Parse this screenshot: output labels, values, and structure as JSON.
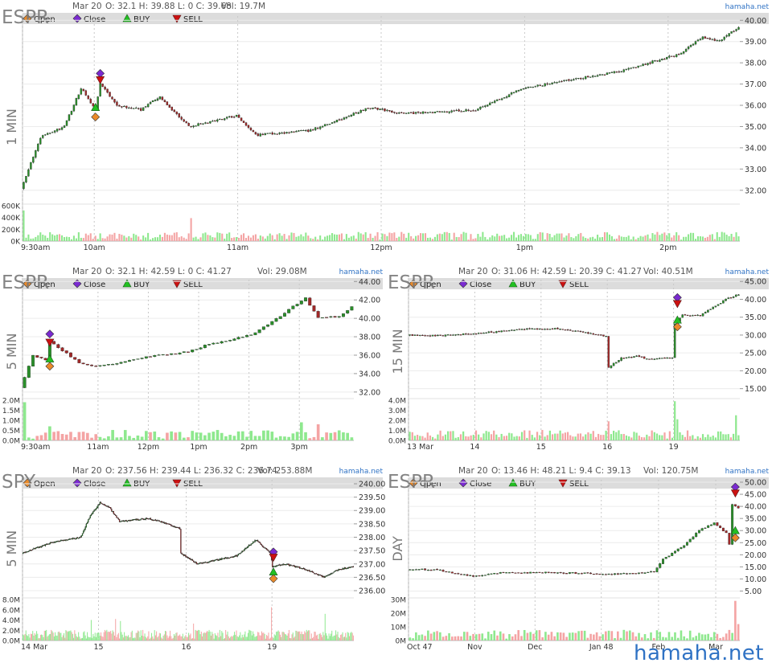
{
  "source_label": "hamaha.net",
  "watermark": "hamaha.net",
  "legend_items": [
    "Open",
    "Close",
    "BUY",
    "SELL"
  ],
  "colors": {
    "up": "#2a8f2a",
    "down": "#a02828",
    "vol_up": "#8ee88e",
    "vol_down": "#f4a4a4",
    "open_marker": "#e98a2a",
    "close_marker": "#7a2ad0",
    "buy_marker": "#22c022",
    "sell_marker": "#cc1111",
    "legend_bar": "#dcdcdc",
    "grid": "#c8c8c8"
  },
  "chart_data": [
    {
      "type": "candlestick",
      "symbol": "ESPR",
      "timeframe": "1 MIN",
      "header": {
        "date": "Mar 20",
        "ohlc": "O: 32.1 H: 39.88 L: 0 C: 39.68",
        "volume": "Vol: 19.7M"
      },
      "ylim": [
        31.5,
        40.2
      ],
      "yticks": [
        "32.00",
        "33.00",
        "34.00",
        "35.00",
        "36.00",
        "37.00",
        "38.00",
        "39.00",
        "40.00"
      ],
      "ytick_values": [
        32,
        33,
        34,
        35,
        36,
        37,
        38,
        39,
        40
      ],
      "xlabels": [
        "9:30am",
        "10am",
        "11am",
        "12pm",
        "1pm",
        "2pm"
      ],
      "xlabel_pos": [
        0,
        30,
        90,
        150,
        210,
        270
      ],
      "n_bars": 300,
      "price_path": [
        [
          0,
          32.1
        ],
        [
          8,
          34.5
        ],
        [
          18,
          35.0
        ],
        [
          25,
          36.8
        ],
        [
          31,
          35.8
        ],
        [
          33,
          37.0
        ],
        [
          40,
          36.0
        ],
        [
          50,
          35.8
        ],
        [
          58,
          36.4
        ],
        [
          70,
          35.0
        ],
        [
          90,
          35.5
        ],
        [
          98,
          34.6
        ],
        [
          120,
          34.8
        ],
        [
          135,
          35.4
        ],
        [
          145,
          35.9
        ],
        [
          160,
          35.6
        ],
        [
          190,
          35.8
        ],
        [
          210,
          36.8
        ],
        [
          230,
          37.2
        ],
        [
          250,
          37.6
        ],
        [
          275,
          38.4
        ],
        [
          285,
          39.2
        ],
        [
          292,
          39.0
        ],
        [
          300,
          39.68
        ]
      ],
      "vol_ylim": [
        0,
        600000
      ],
      "vol_ticks": [
        "600K",
        "400K",
        "200K",
        "0K"
      ],
      "vol_tick_values": [
        600000,
        400000,
        200000,
        0
      ],
      "vol_spikes": [
        [
          0,
          520000
        ],
        [
          70,
          390000
        ]
      ],
      "markers": [
        {
          "type": "open",
          "bar": 30,
          "price": 35.45
        },
        {
          "type": "buy",
          "bar": 30,
          "price": 35.9
        },
        {
          "type": "close",
          "bar": 32,
          "price": 37.5
        },
        {
          "type": "sell",
          "bar": 32,
          "price": 37.2
        }
      ]
    },
    {
      "type": "candlestick",
      "symbol": "ESPR",
      "timeframe": "5 MIN",
      "header": {
        "date": "Mar 20",
        "ohlc": "O: 32.1 H: 42.59 L: 0 C: 41.27",
        "volume": "Vol: 29.08M"
      },
      "ylim": [
        31.2,
        44.2
      ],
      "yticks": [
        "32.00",
        "34.00",
        "36.00",
        "38.00",
        "40.00",
        "42.00",
        "44.00"
      ],
      "ytick_values": [
        32,
        34,
        36,
        38,
        40,
        42,
        44
      ],
      "xlabels": [
        "9:30am",
        "11am",
        "12pm",
        "1pm",
        "2pm",
        "3pm"
      ],
      "xlabel_pos": [
        0,
        18,
        30,
        42,
        54,
        66
      ],
      "n_bars": 79,
      "price_path": [
        [
          0,
          32.5
        ],
        [
          3,
          36.0
        ],
        [
          6,
          35.5
        ],
        [
          7,
          37.5
        ],
        [
          10,
          36.5
        ],
        [
          14,
          35.2
        ],
        [
          18,
          34.8
        ],
        [
          22,
          35.0
        ],
        [
          30,
          35.8
        ],
        [
          40,
          36.4
        ],
        [
          45,
          37.2
        ],
        [
          55,
          38.2
        ],
        [
          60,
          39.6
        ],
        [
          66,
          41.6
        ],
        [
          68,
          42.2
        ],
        [
          71,
          40.0
        ],
        [
          76,
          40.2
        ],
        [
          79,
          41.3
        ]
      ],
      "vol_ylim": [
        0,
        2000000
      ],
      "vol_ticks": [
        "2.0M",
        "1.5M",
        "1.0M",
        "0.5M",
        "0.0M"
      ],
      "vol_tick_values": [
        2000000,
        1500000,
        1000000,
        500000,
        0
      ],
      "vol_spikes": [
        [
          0,
          1900000
        ],
        [
          6,
          700000
        ],
        [
          66,
          900000
        ],
        [
          70,
          800000
        ]
      ],
      "markers": [
        {
          "type": "open",
          "bar": 6,
          "price": 34.8
        },
        {
          "type": "buy",
          "bar": 6,
          "price": 35.6
        },
        {
          "type": "close",
          "bar": 6,
          "price": 38.3
        },
        {
          "type": "sell",
          "bar": 6,
          "price": 37.4
        }
      ]
    },
    {
      "type": "candlestick",
      "symbol": "ESPR",
      "timeframe": "15 MIN",
      "header": {
        "date": "Mar 20",
        "ohlc": "O: 31.06 H: 42.59 L: 20.39 C: 41.27",
        "volume": "Vol: 40.51M"
      },
      "ylim": [
        12.0,
        45.5
      ],
      "yticks": [
        "15.00",
        "20.00",
        "25.00",
        "30.00",
        "35.00",
        "40.00",
        "45.00"
      ],
      "ytick_values": [
        15,
        20,
        25,
        30,
        35,
        40,
        45
      ],
      "xlabels": [
        "13 Mar",
        "14",
        "15",
        "16",
        "19"
      ],
      "xlabel_pos": [
        0,
        26,
        52,
        78,
        104
      ],
      "n_bars": 130,
      "price_path": [
        [
          0,
          30.0
        ],
        [
          10,
          29.8
        ],
        [
          30,
          30.6
        ],
        [
          45,
          31.6
        ],
        [
          60,
          31.8
        ],
        [
          70,
          30.6
        ],
        [
          78,
          29.6
        ],
        [
          79,
          21.0
        ],
        [
          84,
          23.5
        ],
        [
          90,
          24.0
        ],
        [
          96,
          23.2
        ],
        [
          104,
          23.6
        ],
        [
          105,
          33.0
        ],
        [
          108,
          35.5
        ],
        [
          115,
          35.5
        ],
        [
          125,
          40.0
        ],
        [
          130,
          41.3
        ]
      ],
      "vol_ylim": [
        0,
        4000000
      ],
      "vol_ticks": [
        "4.0M",
        "3.0M",
        "2.0M",
        "1.0M",
        "0.0M"
      ],
      "vol_tick_values": [
        4000000,
        3000000,
        2000000,
        1000000,
        0
      ],
      "vol_spikes": [
        [
          78,
          1900000
        ],
        [
          104,
          3900000
        ],
        [
          105,
          2100000
        ],
        [
          128,
          2500000
        ]
      ],
      "markers": [
        {
          "type": "close",
          "bar": 105,
          "price": 40.5
        },
        {
          "type": "sell",
          "bar": 105,
          "price": 38.8
        },
        {
          "type": "buy",
          "bar": 105,
          "price": 34.2
        },
        {
          "type": "open",
          "bar": 105,
          "price": 32.3
        }
      ]
    },
    {
      "type": "candlestick",
      "symbol": "SPY",
      "timeframe": "5 MIN",
      "header": {
        "date": "Mar 20",
        "ohlc": "O: 237.56 H: 239.44 L: 236.32 C: 236.74",
        "volume": "Vol: 253.88M"
      },
      "ylim": [
        235.85,
        240.15
      ],
      "yticks": [
        "236.00",
        "236.50",
        "237.00",
        "237.50",
        "238.00",
        "238.50",
        "239.00",
        "239.50",
        "240.00"
      ],
      "ytick_values": [
        236,
        236.5,
        237,
        237.5,
        238,
        238.5,
        239,
        239.5,
        240
      ],
      "xlabels": [
        "14 Mar",
        "15",
        "16",
        "19"
      ],
      "xlabel_pos": [
        0,
        78,
        168,
        256
      ],
      "n_bars": 340,
      "price_path": [
        [
          0,
          237.4
        ],
        [
          30,
          237.8
        ],
        [
          60,
          238.0
        ],
        [
          70,
          238.8
        ],
        [
          80,
          239.3
        ],
        [
          90,
          239.1
        ],
        [
          100,
          238.6
        ],
        [
          130,
          238.7
        ],
        [
          150,
          238.5
        ],
        [
          162,
          238.3
        ],
        [
          163,
          237.4
        ],
        [
          180,
          237.0
        ],
        [
          220,
          237.3
        ],
        [
          240,
          237.9
        ],
        [
          255,
          237.4
        ],
        [
          257,
          236.9
        ],
        [
          270,
          237.0
        ],
        [
          290,
          236.8
        ],
        [
          310,
          236.5
        ],
        [
          325,
          236.8
        ],
        [
          340,
          236.9
        ]
      ],
      "vol_ylim": [
        0,
        8000000
      ],
      "vol_ticks": [
        "8.0M",
        "6.0M",
        "4.0M",
        "2.0M",
        "0.0M"
      ],
      "vol_tick_values": [
        8000000,
        6000000,
        4000000,
        2000000,
        0
      ],
      "vol_spikes": [
        [
          70,
          4000000
        ],
        [
          95,
          4200000
        ],
        [
          100,
          3800000
        ],
        [
          175,
          3300000
        ],
        [
          255,
          6500000
        ],
        [
          310,
          5200000
        ]
      ],
      "markers": [
        {
          "type": "close",
          "bar": 257,
          "price": 237.45
        },
        {
          "type": "sell",
          "bar": 257,
          "price": 237.25
        },
        {
          "type": "buy",
          "bar": 257,
          "price": 236.7
        },
        {
          "type": "open",
          "bar": 257,
          "price": 236.45
        }
      ]
    },
    {
      "type": "candlestick",
      "symbol": "ESPR",
      "timeframe": "DAY",
      "header": {
        "date": "Mar 20",
        "ohlc": "O: 13.46 H: 48.21 L: 9.4 C: 39.13",
        "volume": "Vol: 120.75M"
      },
      "ylim": [
        3.5,
        51.0
      ],
      "yticks": [
        "5.00",
        "10.00",
        "15.00",
        "20.00",
        "25.00",
        "30.00",
        "35.00",
        "40.00",
        "45.00",
        "50.00"
      ],
      "ytick_values": [
        5,
        10,
        15,
        20,
        25,
        30,
        35,
        40,
        45,
        50
      ],
      "xlabels": [
        "Oct 47",
        "Nov",
        "Dec",
        "Jan 48",
        "Feb",
        "Mar"
      ],
      "xlabel_pos": [
        0,
        22,
        42,
        64,
        83,
        102
      ],
      "n_bars": 110,
      "price_path": [
        [
          0,
          14.0
        ],
        [
          10,
          13.8
        ],
        [
          22,
          11.0
        ],
        [
          30,
          12.5
        ],
        [
          50,
          12.6
        ],
        [
          70,
          12.0
        ],
        [
          82,
          13.0
        ],
        [
          85,
          18.0
        ],
        [
          92,
          24.0
        ],
        [
          97,
          30.0
        ],
        [
          102,
          33.0
        ],
        [
          105,
          30.0
        ],
        [
          106,
          29.0
        ],
        [
          107,
          24.0
        ],
        [
          108,
          41.0
        ],
        [
          110,
          39.13
        ]
      ],
      "vol_ylim": [
        0,
        30000000
      ],
      "vol_ticks": [
        "30M",
        "20M",
        "10M",
        "0M"
      ],
      "vol_tick_values": [
        30000000,
        20000000,
        10000000,
        0
      ],
      "vol_spikes": [
        [
          108,
          29000000
        ],
        [
          109,
          12000000
        ]
      ],
      "markers": [
        {
          "type": "close",
          "bar": 108,
          "price": 48.0
        },
        {
          "type": "sell",
          "bar": 108,
          "price": 45.5
        },
        {
          "type": "buy",
          "bar": 108,
          "price": 30.0
        },
        {
          "type": "open",
          "bar": 108,
          "price": 27.0
        }
      ]
    }
  ]
}
